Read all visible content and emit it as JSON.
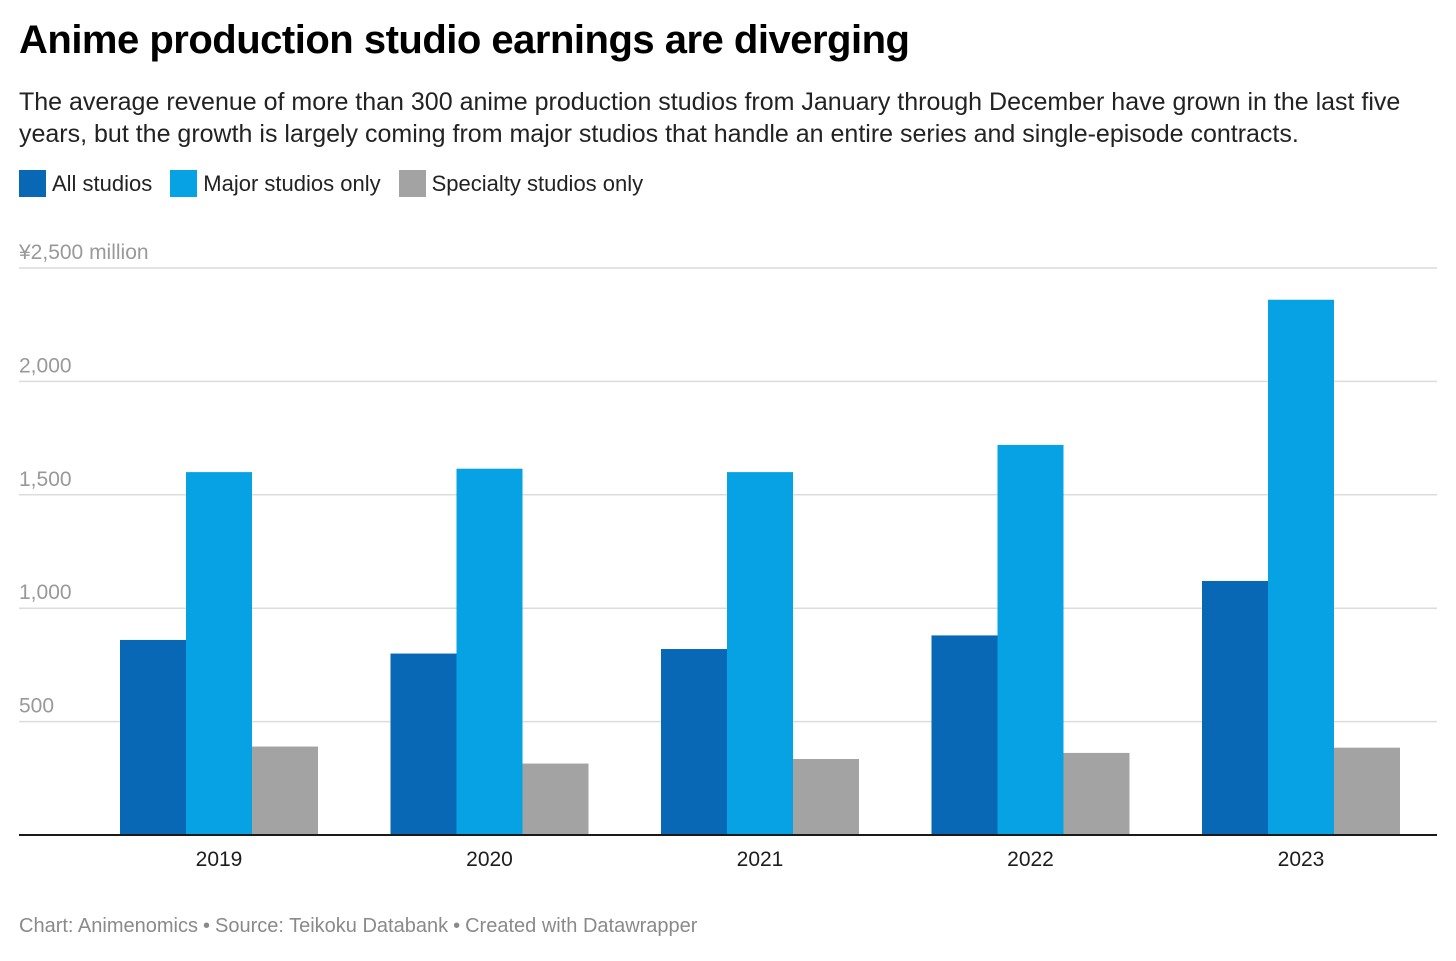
{
  "title": "Anime production studio earnings are diverging",
  "subtitle": "The average revenue of more than 300 anime production studios from January through December have grown in the last five years, but the growth is largely coming from major studios that handle an entire series and single-episode contracts.",
  "footer": {
    "chart_credit": "Chart: Animenomics",
    "separator": "•",
    "source": "Source: Teikoku Databank",
    "created_with": "Created with Datawrapper"
  },
  "colors": {
    "all_studios": "#0868b6",
    "major_studios": "#06a2e4",
    "specialty_studios": "#a3a3a3",
    "gridline": "#dcdcdc",
    "axis": "#1a1a1a",
    "tick_label": "#999999"
  },
  "chart_data": {
    "type": "bar",
    "title": "Anime production studio earnings are diverging",
    "categories": [
      "2019",
      "2020",
      "2021",
      "2022",
      "2023"
    ],
    "series": [
      {
        "name": "All studios",
        "values": [
          860,
          800,
          820,
          880,
          1120
        ]
      },
      {
        "name": "Major studios only",
        "values": [
          1600,
          1615,
          1600,
          1720,
          2360
        ]
      },
      {
        "name": "Specialty studios only",
        "values": [
          390,
          315,
          335,
          362,
          385
        ]
      }
    ],
    "yticks": [
      {
        "value": 500,
        "label": "500"
      },
      {
        "value": 1000,
        "label": "1,000"
      },
      {
        "value": 1500,
        "label": "1,500"
      },
      {
        "value": 2000,
        "label": "2,000"
      },
      {
        "value": 2500,
        "label": "¥2,500 million"
      }
    ],
    "ylim": [
      0,
      2500
    ],
    "grid": true,
    "legend_position": "top-left"
  }
}
